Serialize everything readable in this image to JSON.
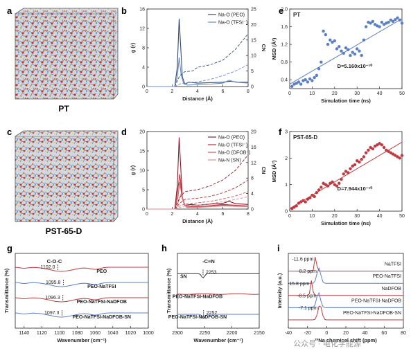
{
  "panel_letters": [
    "a",
    "b",
    "c",
    "d",
    "e",
    "f",
    "g",
    "h",
    "i"
  ],
  "sim_labels": {
    "a": "PT",
    "c": "PST-65-D"
  },
  "watermark": "公众号 · 电化学能源",
  "colors": {
    "dark_blue": "#2f4a6e",
    "light_blue": "#6b8cc9",
    "dark_red": "#8b1e2a",
    "red": "#b8323a",
    "mid_red": "#c65a5e",
    "pink": "#e28a8e",
    "scatter_blue": "#5b7fc4",
    "scatter_red": "#c0393f",
    "fit_line": "#333333"
  },
  "chart_data": [
    {
      "id": "b",
      "type": "line",
      "xlabel": "Distance (Å)",
      "ylabel": "g (r)",
      "y2label": "CN",
      "xlim": [
        0,
        8
      ],
      "ylim": [
        0,
        16
      ],
      "y2lim": [
        0,
        25
      ],
      "xticks": [
        0,
        2,
        4,
        6,
        8
      ],
      "yticks": [
        0,
        4,
        8,
        12,
        16
      ],
      "y2ticks": [
        0,
        5,
        10,
        15,
        20,
        25
      ],
      "legend": [
        "Na-O (PEO)",
        "Na-O (TFSI⁻)"
      ],
      "series": [
        {
          "name": "Na-O (PEO)",
          "color": "#2f4a6e",
          "axis": "left",
          "style": "solid",
          "x": [
            0,
            2.2,
            2.4,
            2.55,
            2.65,
            2.8,
            3.0,
            3.3,
            4,
            5,
            6,
            6.6,
            7.2,
            8
          ],
          "y": [
            0,
            0,
            4,
            14,
            9,
            2,
            0.5,
            0.9,
            0.7,
            0.8,
            0.9,
            1.1,
            0.9,
            0.9
          ]
        },
        {
          "name": "Na-O (TFSI⁻)",
          "color": "#6b8cc9",
          "axis": "left",
          "style": "solid",
          "x": [
            0,
            2.2,
            2.4,
            2.55,
            2.7,
            2.9,
            3.2,
            4,
            5,
            6,
            6.5,
            7,
            8
          ],
          "y": [
            0,
            0,
            2,
            6,
            2.5,
            0.6,
            0.3,
            0.4,
            0.5,
            0.7,
            1.3,
            0.9,
            0.7
          ]
        },
        {
          "name": "CN Na-O (PEO)",
          "color": "#2f4a6e",
          "axis": "right",
          "style": "dashed",
          "x": [
            2.2,
            2.6,
            3.0,
            3.6,
            4,
            5,
            6,
            7,
            8
          ],
          "y": [
            0,
            3.5,
            4.8,
            5.0,
            6.2,
            7.0,
            8.5,
            12,
            17
          ]
        },
        {
          "name": "CN Na-O (TFSI⁻)",
          "color": "#6b8cc9",
          "axis": "right",
          "style": "dashed",
          "x": [
            2.2,
            2.6,
            3.0,
            4,
            5,
            6,
            7,
            8
          ],
          "y": [
            0,
            0.8,
            1.2,
            1.5,
            2.3,
            3.5,
            5,
            7
          ]
        }
      ]
    },
    {
      "id": "d",
      "type": "line",
      "xlabel": "Distance (Å)",
      "ylabel": "g (r)",
      "y2label": "CN",
      "xlim": [
        0,
        8
      ],
      "ylim": [
        0,
        20
      ],
      "y2lim": [
        0,
        20
      ],
      "xticks": [
        0,
        2,
        4,
        6,
        8
      ],
      "yticks": [
        0,
        5,
        10,
        15,
        20
      ],
      "y2ticks": [
        0,
        4,
        8,
        12,
        16,
        20
      ],
      "legend": [
        "Na-O (PEO)",
        "Na-O (TFSI⁻)",
        "Na-O (DFOB⁻)",
        "Na-N (SN)"
      ],
      "series": [
        {
          "name": "Na-O (PEO)",
          "color": "#8b1e2a",
          "axis": "left",
          "style": "solid",
          "x": [
            0,
            2.2,
            2.4,
            2.55,
            2.65,
            2.8,
            3.0,
            3.5,
            4,
            5,
            6,
            6.5,
            7,
            8
          ],
          "y": [
            0,
            0,
            6,
            18.5,
            12,
            3,
            1,
            1.2,
            1.0,
            1.3,
            1.5,
            2.0,
            1.4,
            1.2
          ]
        },
        {
          "name": "Na-O (TFSI⁻)",
          "color": "#b8323a",
          "axis": "left",
          "style": "solid",
          "x": [
            0,
            2.2,
            2.4,
            2.6,
            2.8,
            3.0,
            4,
            5,
            6,
            7,
            8
          ],
          "y": [
            0,
            0,
            4,
            9,
            3,
            0.8,
            0.6,
            0.9,
            1.2,
            1.0,
            0.8
          ]
        },
        {
          "name": "Na-O (DFOB⁻)",
          "color": "#c65a5e",
          "axis": "left",
          "style": "solid",
          "x": [
            0,
            2.2,
            2.45,
            2.6,
            2.8,
            3.1,
            4,
            5,
            6,
            7,
            8
          ],
          "y": [
            0,
            0,
            3,
            7,
            2.5,
            0.5,
            0.5,
            0.7,
            1.0,
            0.9,
            0.7
          ]
        },
        {
          "name": "Na-N (SN)",
          "color": "#e28a8e",
          "axis": "left",
          "style": "solid",
          "x": [
            0,
            2.3,
            2.5,
            2.7,
            2.9,
            3.2,
            4,
            5,
            6,
            7,
            8
          ],
          "y": [
            0,
            0,
            2,
            4,
            1.5,
            0.4,
            0.4,
            0.6,
            0.8,
            0.7,
            0.6
          ]
        },
        {
          "name": "CN Na-O (PEO)",
          "color": "#8b1e2a",
          "axis": "right",
          "style": "dashed",
          "x": [
            2.2,
            2.6,
            3.0,
            4,
            5,
            6,
            7,
            8
          ],
          "y": [
            0,
            3,
            4.5,
            5,
            6,
            7.5,
            10,
            14
          ]
        },
        {
          "name": "CN Na-O (TFSI⁻)",
          "color": "#b8323a",
          "axis": "right",
          "style": "dashed",
          "x": [
            2.2,
            2.6,
            3.0,
            4,
            5,
            6,
            7,
            8
          ],
          "y": [
            0,
            1.5,
            2.5,
            2.8,
            3.3,
            4.2,
            5.5,
            7.5
          ]
        },
        {
          "name": "CN Na-O (DFOB⁻)",
          "color": "#c65a5e",
          "axis": "right",
          "style": "dashed",
          "x": [
            2.2,
            2.6,
            3.0,
            4,
            5,
            6,
            7,
            8
          ],
          "y": [
            0,
            0.8,
            1.3,
            1.6,
            2.0,
            2.6,
            3.4,
            4.5
          ]
        },
        {
          "name": "CN Na-N (SN)",
          "color": "#e28a8e",
          "axis": "right",
          "style": "dashed",
          "x": [
            2.2,
            2.6,
            3.0,
            4,
            5,
            6,
            7,
            8
          ],
          "y": [
            0,
            0.4,
            0.8,
            1.0,
            1.4,
            1.9,
            2.5,
            3.2
          ]
        }
      ]
    },
    {
      "id": "e",
      "type": "scatter",
      "title": "PT",
      "xlabel": "Simulation time (ns)",
      "ylabel": "MSD (Å²)",
      "xlim": [
        0,
        50
      ],
      "ylim": [
        0.2,
        2.0
      ],
      "xticks": [
        0,
        10,
        20,
        30,
        40,
        50
      ],
      "yticks": [
        0.4,
        0.8,
        1.2,
        1.6,
        2.0
      ],
      "annotation": "D=5.160x10⁻¹⁰",
      "fit": {
        "x": [
          0,
          50
        ],
        "y": [
          0.3,
          1.78
        ]
      },
      "series": [
        {
          "name": "PT",
          "color": "#5b7fc4",
          "x": [
            1,
            2,
            3,
            4,
            5,
            6,
            7,
            8,
            9,
            10,
            11,
            12,
            13,
            14,
            15,
            16,
            17,
            18,
            19,
            20,
            21,
            22,
            23,
            24,
            25,
            26,
            27,
            28,
            29,
            30,
            31,
            32,
            33,
            34,
            35,
            36,
            37,
            38,
            39,
            40,
            41,
            42,
            43,
            44,
            45,
            46,
            47,
            48,
            49,
            50
          ],
          "y": [
            0.25,
            0.3,
            0.32,
            0.35,
            0.3,
            0.38,
            0.4,
            0.35,
            0.42,
            0.38,
            0.45,
            0.5,
            0.65,
            0.8,
            1.5,
            1.42,
            1.2,
            1.3,
            1.25,
            1.28,
            1.1,
            1.15,
            1.05,
            1.0,
            1.12,
            1.08,
            0.95,
            1.02,
            0.98,
            1.1,
            1.05,
            0.95,
            1.3,
            1.6,
            1.7,
            1.68,
            1.72,
            1.65,
            1.62,
            1.6,
            1.7,
            1.65,
            1.68,
            1.7,
            1.75,
            1.72,
            1.76,
            1.8,
            1.75,
            1.68
          ]
        }
      ]
    },
    {
      "id": "f",
      "type": "scatter",
      "title": "PST-65-D",
      "xlabel": "Simulation time (ns)",
      "ylabel": "MSD (Å²)",
      "xlim": [
        0,
        50
      ],
      "ylim": [
        0,
        3
      ],
      "xticks": [
        0,
        10,
        20,
        30,
        40,
        50
      ],
      "yticks": [
        0,
        1,
        2,
        3
      ],
      "annotation": "D=7.944x10⁻¹⁰",
      "fit": {
        "x": [
          0,
          50
        ],
        "y": [
          0.1,
          2.6
        ]
      },
      "series": [
        {
          "name": "PST-65-D",
          "color": "#c0393f",
          "x": [
            1,
            2,
            3,
            4,
            5,
            6,
            7,
            8,
            9,
            10,
            11,
            12,
            13,
            14,
            15,
            16,
            17,
            18,
            19,
            20,
            21,
            22,
            23,
            24,
            25,
            26,
            27,
            28,
            29,
            30,
            31,
            32,
            33,
            34,
            35,
            36,
            37,
            38,
            39,
            40,
            41,
            42,
            43,
            44,
            45,
            46,
            47,
            48,
            49,
            50
          ],
          "y": [
            0.1,
            0.15,
            0.2,
            0.3,
            0.35,
            0.4,
            0.35,
            0.45,
            0.5,
            0.6,
            0.55,
            0.7,
            0.8,
            0.9,
            1.05,
            1.0,
            0.95,
            1.05,
            1.1,
            1.0,
            0.95,
            1.05,
            1.2,
            1.4,
            1.5,
            1.45,
            1.6,
            1.7,
            1.75,
            1.9,
            1.85,
            1.95,
            2.05,
            2.2,
            2.3,
            2.4,
            2.35,
            2.45,
            2.5,
            2.55,
            2.5,
            2.4,
            2.3,
            2.25,
            2.2,
            2.15,
            2.1,
            2.05,
            2.0,
            2.1
          ]
        }
      ]
    },
    {
      "id": "g",
      "type": "line",
      "xlabel": "Wavenumber (cm⁻¹)",
      "ylabel": "Transmittance (%)",
      "xlim": [
        1150,
        1000
      ],
      "xticks": [
        1140,
        1120,
        1100,
        1080,
        1060,
        1040,
        1020,
        1000
      ],
      "peak_label": "C-O-C",
      "traces": [
        {
          "name": "PEO",
          "color": "#c0393f",
          "peak": "1102.0",
          "offset": 3
        },
        {
          "name": "PEO-NaTFSI",
          "color": "#5b7fc4",
          "peak": "1095.8",
          "offset": 2
        },
        {
          "name": "PEO-NaTFSI-NaDFOB",
          "color": "#c0393f",
          "peak": "1096.3",
          "offset": 1
        },
        {
          "name": "PEO-NaTFSI-NaDFOB-SN",
          "color": "#5b7fc4",
          "peak": "1097.3",
          "offset": 0
        }
      ]
    },
    {
      "id": "h",
      "type": "line",
      "xlabel": "Wavenumber (cm⁻¹)",
      "ylabel": "Transmittance (%)",
      "xlim": [
        2300,
        2150
      ],
      "xticks": [
        2300,
        2250,
        2200,
        2150
      ],
      "peak_label": "-C≡N",
      "traces": [
        {
          "name": "SN",
          "color": "#333333",
          "peak": "2253",
          "offset": 2
        },
        {
          "name": "PEO-NaTFSI-NaDFOB",
          "color": "#c0393f",
          "peak": "",
          "offset": 1
        },
        {
          "name": "PEO-NaTFSI-NaDFOB-SN",
          "color": "#5b7fc4",
          "peak": "2252",
          "offset": 0
        }
      ]
    },
    {
      "id": "i",
      "type": "line",
      "xlabel": "²³Na chemical shift (ppm)",
      "ylabel": "Intensity (a.u.)",
      "xlim": [
        -40,
        80
      ],
      "xticks": [
        -40,
        -20,
        0,
        20,
        40,
        60,
        80
      ],
      "traces": [
        {
          "name": "NaTFSI",
          "color": "#c0393f",
          "peak": "-11.6 ppm",
          "center": -11.6,
          "offset": 4
        },
        {
          "name": "PEO-NaTFSI",
          "color": "#5b7fc4",
          "peak": "-8.2 ppm",
          "center": -8.2,
          "offset": 3
        },
        {
          "name": "NaDFOB",
          "color": "#c0393f",
          "peak": "-15.8 ppm",
          "center": -15.8,
          "offset": 2
        },
        {
          "name": "PEO-NaTFSI-NaDFOB",
          "color": "#5b7fc4",
          "peak": "-8.5 ppm",
          "center": -8.5,
          "offset": 1
        },
        {
          "name": "PEO-NaTFSI-NaDFOB-SN",
          "color": "#c0393f",
          "peak": "-7.1 ppm",
          "center": -7.1,
          "offset": 0
        }
      ]
    }
  ]
}
